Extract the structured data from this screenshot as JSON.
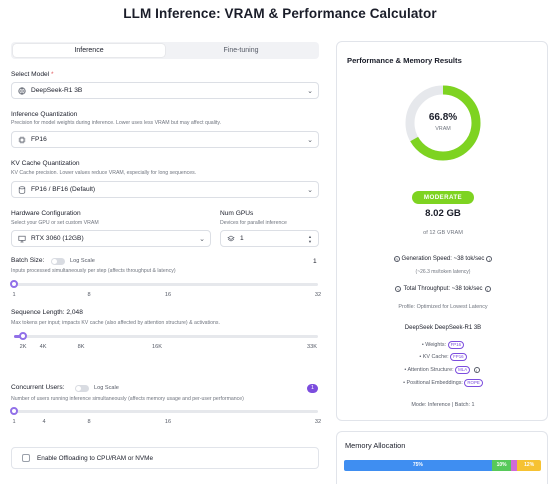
{
  "page_title": "LLM Inference: VRAM & Performance Calculator",
  "tabs": [
    {
      "label": "Inference",
      "active": true
    },
    {
      "label": "Fine-tuning",
      "active": false
    }
  ],
  "model": {
    "label": "Select Model",
    "required_mark": "*",
    "value": "DeepSeek-R1 3B"
  },
  "quant": {
    "label": "Inference Quantization",
    "hint": "Precision for model weights during inference. Lower uses less VRAM but may affect quality.",
    "value": "FP16"
  },
  "kv": {
    "label": "KV Cache Quantization",
    "hint": "KV Cache precision. Lower values reduce VRAM, especially for long sequences.",
    "value": "FP16 / BF16 (Default)"
  },
  "hardware": {
    "label": "Hardware Configuration",
    "hint": "Select your GPU or set custom VRAM",
    "value": "RTX 3060 (12GB)"
  },
  "gpus": {
    "label": "Num GPUs",
    "hint": "Devices for parallel inference",
    "value": "1"
  },
  "batch": {
    "label": "Batch Size:",
    "toggle_label": "Log Scale",
    "value": "1",
    "hint": "Inputs processed simultaneously per step (affects throughput & latency)",
    "ticks": [
      "1",
      "8",
      "16",
      "32"
    ],
    "level": 0.0
  },
  "seq": {
    "label": "Sequence Length: 2,048",
    "hint": "Max tokens per input; impacts KV cache (also affected by attention structure) & activations.",
    "ticks": [
      "2K",
      "4K",
      "8K",
      "16K",
      "33K"
    ],
    "level": 0.03
  },
  "concurrent": {
    "label": "Concurrent Users:",
    "toggle_label": "Log Scale",
    "value": "1",
    "hint": "Number of users running inference simultaneously (affects memory usage and per-user performance)",
    "ticks": [
      "1",
      "4",
      "8",
      "16",
      "32"
    ],
    "level": 0.0
  },
  "offload": {
    "label": "Enable Offloading to CPU/RAM or NVMe"
  },
  "results": {
    "title": "Performance & Memory Results",
    "percent": "66.8%",
    "percent_sub": "VRAM",
    "usage_fraction": 0.668,
    "status": "MODERATE",
    "vram_used": "8.02 GB",
    "vram_total": "of 12 GB VRAM",
    "gen_speed": "Generation Speed: ~38 tok/sec",
    "latency": "(~26.3 ms/token latency)",
    "throughput": "Total Throughput: ~38 tok/sec",
    "profile": "Profile: Optimized for Lowest Latency",
    "model_name": "DeepSeek DeepSeek-R1 3B",
    "specs": [
      {
        "key": "Weights:",
        "tag": "FP16"
      },
      {
        "key": "KV Cache:",
        "tag": "FP16"
      },
      {
        "key": "Attention Structure:",
        "tag": "MLA"
      },
      {
        "key": "Positional Embeddings:",
        "tag": "ROPE"
      }
    ],
    "mode": "Mode: Inference | Batch: 1"
  },
  "memory": {
    "title": "Memory Allocation",
    "segments": [
      {
        "label": "75%",
        "value": 75,
        "color": "#3f8ef1"
      },
      {
        "label": "10%",
        "value": 10,
        "color": "#57c95a"
      },
      {
        "label": "",
        "value": 3,
        "color": "#d06ad8"
      },
      {
        "label": "12%",
        "value": 12,
        "color": "#f6c232"
      }
    ]
  },
  "colors": {
    "accent": "#9170e8",
    "ring": "#7ed321",
    "ring_track": "#e6e8ec"
  }
}
